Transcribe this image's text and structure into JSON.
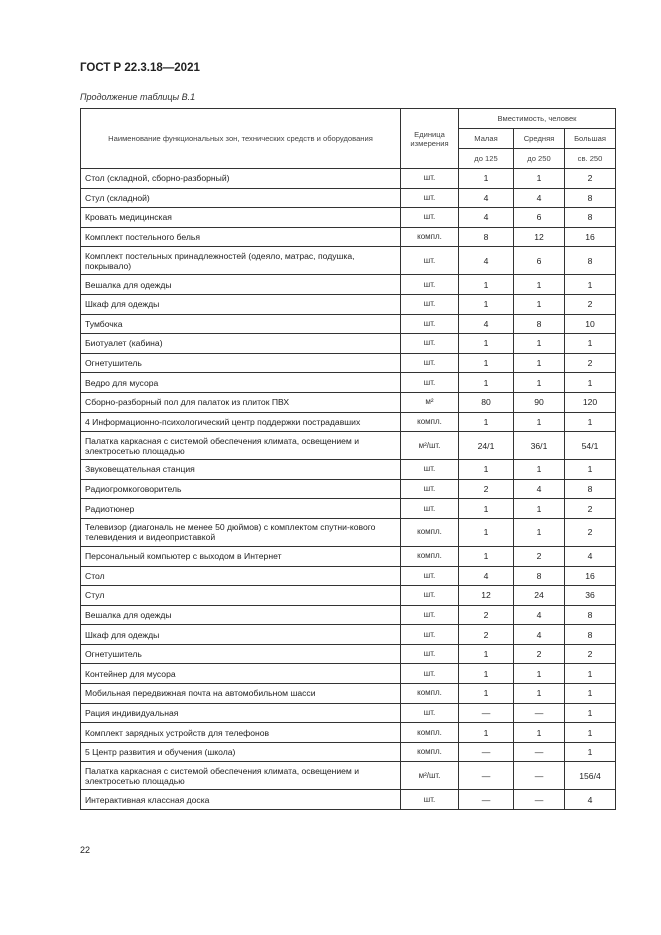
{
  "header": {
    "doc_title": "ГОСТ Р 22.3.18—2021",
    "caption": "Продолжение таблицы В.1"
  },
  "table": {
    "col_name": "Наименование функциональных зон, технических средств и оборудования",
    "col_unit": "Единица измерения",
    "col_capacity": "Вместимость, человек",
    "sizes": [
      "Малая",
      "Средняя",
      "Большая"
    ],
    "ranges": [
      "до 125",
      "до 250",
      "св. 250"
    ],
    "rows": [
      {
        "name": "Стол (складной, сборно-разборный)",
        "unit": "шт.",
        "v": [
          "1",
          "1",
          "2"
        ]
      },
      {
        "name": "Стул (складной)",
        "unit": "шт.",
        "v": [
          "4",
          "4",
          "8"
        ]
      },
      {
        "name": "Кровать медицинская",
        "unit": "шт.",
        "v": [
          "4",
          "6",
          "8"
        ]
      },
      {
        "name": "Комплект постельного белья",
        "unit": "компл.",
        "v": [
          "8",
          "12",
          "16"
        ]
      },
      {
        "name": "Комплект постельных принадлежностей (одеяло, матрас, подушка, покрывало)",
        "unit": "шт.",
        "v": [
          "4",
          "6",
          "8"
        ],
        "double": true
      },
      {
        "name": "Вешалка для одежды",
        "unit": "шт.",
        "v": [
          "1",
          "1",
          "1"
        ]
      },
      {
        "name": "Шкаф для одежды",
        "unit": "шт.",
        "v": [
          "1",
          "1",
          "2"
        ]
      },
      {
        "name": "Тумбочка",
        "unit": "шт.",
        "v": [
          "4",
          "8",
          "10"
        ]
      },
      {
        "name": "Биотуалет (кабина)",
        "unit": "шт.",
        "v": [
          "1",
          "1",
          "1"
        ]
      },
      {
        "name": "Огнетушитель",
        "unit": "шт.",
        "v": [
          "1",
          "1",
          "2"
        ]
      },
      {
        "name": "Ведро для мусора",
        "unit": "шт.",
        "v": [
          "1",
          "1",
          "1"
        ]
      },
      {
        "name": "Сборно-разборный пол для палаток из плиток ПВХ",
        "unit": "м²",
        "v": [
          "80",
          "90",
          "120"
        ]
      },
      {
        "name": "4 Информационно-психологический центр поддержки пострадавших",
        "unit": "компл.",
        "v": [
          "1",
          "1",
          "1"
        ]
      },
      {
        "name": "Палатка каркасная с системой обеспечения климата, освещением и электросетью площадью",
        "unit": "м²/шт.",
        "v": [
          "24/1",
          "36/1",
          "54/1"
        ],
        "double": true
      },
      {
        "name": "Звуковещательная станция",
        "unit": "шт.",
        "v": [
          "1",
          "1",
          "1"
        ]
      },
      {
        "name": "Радиогромкоговоритель",
        "unit": "шт.",
        "v": [
          "2",
          "4",
          "8"
        ]
      },
      {
        "name": "Радиотюнер",
        "unit": "шт.",
        "v": [
          "1",
          "1",
          "2"
        ]
      },
      {
        "name": "Телевизор (диагональ не менее 50 дюймов) с комплектом спутни-кового телевидения и видеоприставкой",
        "unit": "компл.",
        "v": [
          "1",
          "1",
          "2"
        ],
        "double": true
      },
      {
        "name": "Персональный компьютер с выходом в Интернет",
        "unit": "компл.",
        "v": [
          "1",
          "2",
          "4"
        ]
      },
      {
        "name": "Стол",
        "unit": "шт.",
        "v": [
          "4",
          "8",
          "16"
        ]
      },
      {
        "name": "Стул",
        "unit": "шт.",
        "v": [
          "12",
          "24",
          "36"
        ]
      },
      {
        "name": "Вешалка для одежды",
        "unit": "шт.",
        "v": [
          "2",
          "4",
          "8"
        ]
      },
      {
        "name": "Шкаф для одежды",
        "unit": "шт.",
        "v": [
          "2",
          "4",
          "8"
        ]
      },
      {
        "name": "Огнетушитель",
        "unit": "шт.",
        "v": [
          "1",
          "2",
          "2"
        ]
      },
      {
        "name": "Контейнер для мусора",
        "unit": "шт.",
        "v": [
          "1",
          "1",
          "1"
        ]
      },
      {
        "name": "Мобильная передвижная почта на автомобильном шасси",
        "unit": "компл.",
        "v": [
          "1",
          "1",
          "1"
        ]
      },
      {
        "name": "Рация индивидуальная",
        "unit": "шт.",
        "v": [
          "—",
          "—",
          "1"
        ]
      },
      {
        "name": "Комплект зарядных устройств для телефонов",
        "unit": "компл.",
        "v": [
          "1",
          "1",
          "1"
        ]
      },
      {
        "name": "5 Центр развития и обучения (школа)",
        "unit": "компл.",
        "v": [
          "—",
          "—",
          "1"
        ]
      },
      {
        "name": "Палатка каркасная с системой обеспечения климата, освещением и электросетью площадью",
        "unit": "м²/шт.",
        "v": [
          "—",
          "—",
          "156/4"
        ],
        "double": true
      },
      {
        "name": "Интерактивная классная доска",
        "unit": "шт.",
        "v": [
          "—",
          "—",
          "4"
        ]
      }
    ]
  },
  "footer": {
    "page_number": "22"
  }
}
